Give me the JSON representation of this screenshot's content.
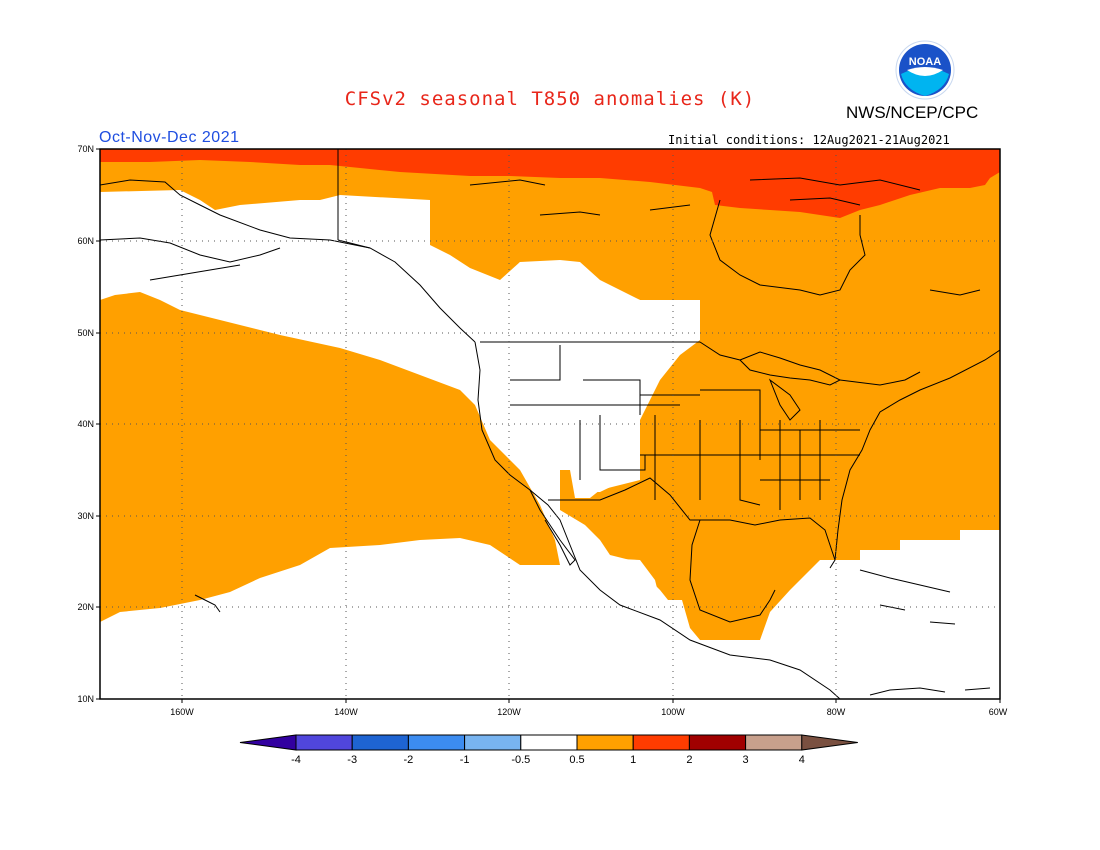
{
  "title": "CFSv2 seasonal T850 anomalies (K)",
  "org": "NWS/NCEP/CPC",
  "season": "Oct-Nov-Dec 2021",
  "init_conditions": "Initial conditions: 12Aug2021-21Aug2021",
  "logo_text": "NOAA",
  "colors": {
    "title": "#e8261a",
    "season": "#1f4ee0",
    "anom_05_1": "#ffa000",
    "anom_1_2": "#ff3c00"
  },
  "lat_labels": [
    "70N",
    "60N",
    "50N",
    "40N",
    "30N",
    "20N",
    "10N"
  ],
  "lon_labels": [
    "160W",
    "140W",
    "120W",
    "100W",
    "80W",
    "60W"
  ],
  "colorbar": {
    "labels": [
      "-4",
      "-3",
      "-2",
      "-1",
      "-0.5",
      "0.5",
      "1",
      "2",
      "3",
      "4"
    ],
    "colors": [
      "#3200a0",
      "#5046dc",
      "#1e64d2",
      "#3c8cf0",
      "#78b4f0",
      "#ffffff",
      "#ffa000",
      "#ff3c00",
      "#a00000",
      "#c8a08c",
      "#7a5040"
    ]
  }
}
